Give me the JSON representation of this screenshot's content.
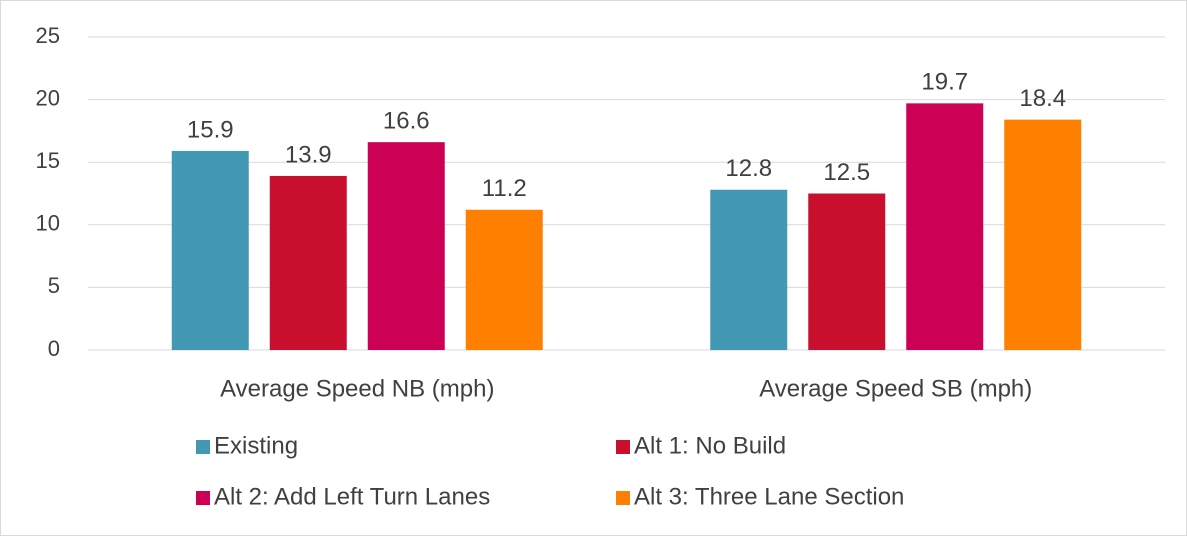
{
  "chart_data": {
    "type": "bar",
    "categories": [
      "Average Speed NB (mph)",
      "Average Speed SB (mph)"
    ],
    "series": [
      {
        "name": "Existing",
        "color": "#4399b4",
        "values": [
          15.9,
          12.8
        ]
      },
      {
        "name": "Alt 1: No Build",
        "color": "#c8102e",
        "values": [
          13.9,
          12.5
        ]
      },
      {
        "name": "Alt 2: Add Left Turn Lanes",
        "color": "#cc0055",
        "values": [
          16.6,
          19.7
        ]
      },
      {
        "name": "Alt 3: Three Lane Section",
        "color": "#ff8000",
        "values": [
          11.2,
          18.4
        ]
      }
    ],
    "ylim": [
      0,
      25
    ],
    "yticks": [
      0,
      5,
      10,
      15,
      20,
      25
    ],
    "grid": true,
    "legend": "bottom"
  }
}
